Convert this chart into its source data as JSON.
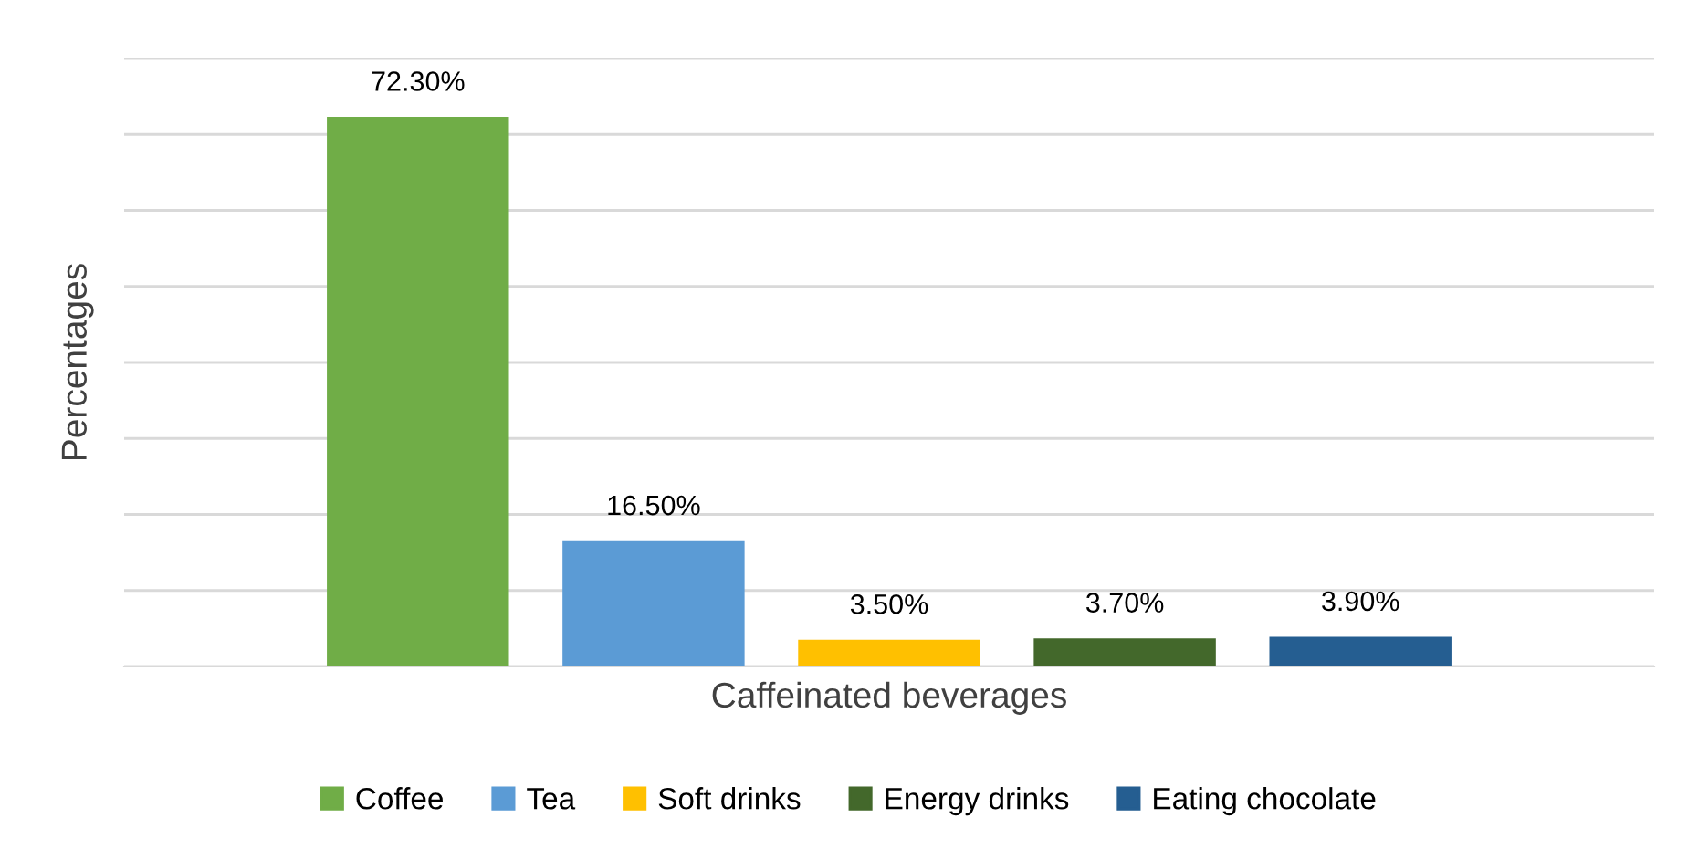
{
  "chart_data": {
    "type": "bar",
    "xlabel": "Caffeinated beverages",
    "ylabel": "Percentages",
    "categories": [
      null
    ],
    "series": [
      {
        "name": "Coffee",
        "color": "#70ad47",
        "values": [
          72.3
        ],
        "value_labels": [
          "72.30%"
        ]
      },
      {
        "name": "Tea",
        "color": "#5b9bd5",
        "values": [
          16.5
        ],
        "value_labels": [
          "16.50%"
        ]
      },
      {
        "name": "Soft drinks",
        "color": "#ffc000",
        "values": [
          3.5
        ],
        "value_labels": [
          "3.50%"
        ]
      },
      {
        "name": "Energy drinks",
        "color": "#43682b",
        "values": [
          3.7
        ],
        "value_labels": [
          "3.70%"
        ]
      },
      {
        "name": "Eating chocolate",
        "color": "#255e91",
        "values": [
          3.9
        ],
        "value_labels": [
          "3.90%"
        ]
      }
    ],
    "ylim": [
      0,
      80
    ],
    "yticks": [
      {
        "value": 0,
        "label": null
      },
      {
        "value": 10,
        "label": null
      },
      {
        "value": 20,
        "label": null
      },
      {
        "value": 30,
        "label": null
      },
      {
        "value": 40,
        "label": null
      },
      {
        "value": 50,
        "label": null
      },
      {
        "value": 60,
        "label": null
      },
      {
        "value": 70,
        "label": null
      },
      {
        "value": 80,
        "label": null
      }
    ],
    "grid": "y",
    "legend": "bottom",
    "tick_labels": false
  }
}
